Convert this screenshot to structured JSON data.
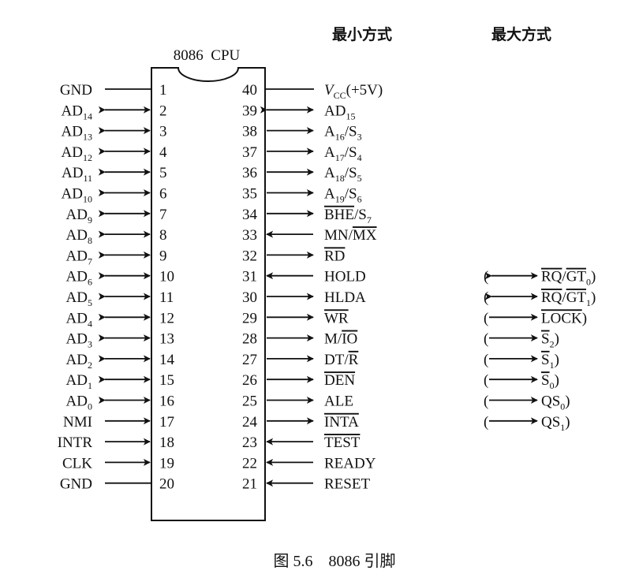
{
  "headers": {
    "chip": "8086  CPU",
    "min_mode": "最小方式",
    "max_mode": "最大方式"
  },
  "caption": "图 5.6    8086 引脚",
  "left_pins": [
    {
      "num": "1",
      "label": [
        {
          "t": "GND"
        }
      ],
      "arrow": "line"
    },
    {
      "num": "2",
      "label": [
        {
          "t": "AD"
        },
        {
          "t": "14",
          "sub": true
        }
      ],
      "arrow": "bi"
    },
    {
      "num": "3",
      "label": [
        {
          "t": "AD"
        },
        {
          "t": "13",
          "sub": true
        }
      ],
      "arrow": "bi"
    },
    {
      "num": "4",
      "label": [
        {
          "t": "AD"
        },
        {
          "t": "12",
          "sub": true
        }
      ],
      "arrow": "bi"
    },
    {
      "num": "5",
      "label": [
        {
          "t": "AD"
        },
        {
          "t": "11",
          "sub": true
        }
      ],
      "arrow": "bi"
    },
    {
      "num": "6",
      "label": [
        {
          "t": "AD"
        },
        {
          "t": "10",
          "sub": true
        }
      ],
      "arrow": "bi"
    },
    {
      "num": "7",
      "label": [
        {
          "t": "AD"
        },
        {
          "t": "9",
          "sub": true
        }
      ],
      "arrow": "bi"
    },
    {
      "num": "8",
      "label": [
        {
          "t": "AD"
        },
        {
          "t": "8",
          "sub": true
        }
      ],
      "arrow": "bi"
    },
    {
      "num": "9",
      "label": [
        {
          "t": "AD"
        },
        {
          "t": "7",
          "sub": true
        }
      ],
      "arrow": "bi"
    },
    {
      "num": "10",
      "label": [
        {
          "t": "AD"
        },
        {
          "t": "6",
          "sub": true
        }
      ],
      "arrow": "bi"
    },
    {
      "num": "11",
      "label": [
        {
          "t": "AD"
        },
        {
          "t": "5",
          "sub": true
        }
      ],
      "arrow": "bi"
    },
    {
      "num": "12",
      "label": [
        {
          "t": "AD"
        },
        {
          "t": "4",
          "sub": true
        }
      ],
      "arrow": "bi"
    },
    {
      "num": "13",
      "label": [
        {
          "t": "AD"
        },
        {
          "t": "3",
          "sub": true
        }
      ],
      "arrow": "bi"
    },
    {
      "num": "14",
      "label": [
        {
          "t": "AD"
        },
        {
          "t": "2",
          "sub": true
        }
      ],
      "arrow": "bi"
    },
    {
      "num": "15",
      "label": [
        {
          "t": "AD"
        },
        {
          "t": "1",
          "sub": true
        }
      ],
      "arrow": "bi"
    },
    {
      "num": "16",
      "label": [
        {
          "t": "AD"
        },
        {
          "t": "0",
          "sub": true
        }
      ],
      "arrow": "bi"
    },
    {
      "num": "17",
      "label": [
        {
          "t": "NMI"
        }
      ],
      "arrow": "in"
    },
    {
      "num": "18",
      "label": [
        {
          "t": "INTR"
        }
      ],
      "arrow": "in"
    },
    {
      "num": "19",
      "label": [
        {
          "t": "CLK"
        }
      ],
      "arrow": "in"
    },
    {
      "num": "20",
      "label": [
        {
          "t": "GND"
        }
      ],
      "arrow": "line"
    }
  ],
  "right_pins": [
    {
      "num": "40",
      "label": [
        {
          "t": "V",
          "it": true
        },
        {
          "t": "CC",
          "sub": true
        },
        {
          "t": "(+5V)"
        }
      ],
      "arrow": "line"
    },
    {
      "num": "39",
      "label": [
        {
          "t": "AD"
        },
        {
          "t": "15",
          "sub": true
        }
      ],
      "arrow": "bi"
    },
    {
      "num": "38",
      "label": [
        {
          "t": "A"
        },
        {
          "t": "16",
          "sub": true
        },
        {
          "t": "/S"
        },
        {
          "t": "3",
          "sub": true
        }
      ],
      "arrow": "out"
    },
    {
      "num": "37",
      "label": [
        {
          "t": "A"
        },
        {
          "t": "17",
          "sub": true
        },
        {
          "t": "/S"
        },
        {
          "t": "4",
          "sub": true
        }
      ],
      "arrow": "out"
    },
    {
      "num": "36",
      "label": [
        {
          "t": "A"
        },
        {
          "t": "18",
          "sub": true
        },
        {
          "t": "/S"
        },
        {
          "t": "5",
          "sub": true
        }
      ],
      "arrow": "out"
    },
    {
      "num": "35",
      "label": [
        {
          "t": "A"
        },
        {
          "t": "19",
          "sub": true
        },
        {
          "t": "/S"
        },
        {
          "t": "6",
          "sub": true
        }
      ],
      "arrow": "out"
    },
    {
      "num": "34",
      "label": [
        {
          "t": "BHE",
          "ov": true
        },
        {
          "t": "/S"
        },
        {
          "t": "7",
          "sub": true
        }
      ],
      "arrow": "out"
    },
    {
      "num": "33",
      "label": [
        {
          "t": "MN/"
        },
        {
          "t": "MX",
          "ov": true
        }
      ],
      "arrow": "in"
    },
    {
      "num": "32",
      "label": [
        {
          "t": "RD",
          "ov": true
        }
      ],
      "arrow": "out"
    },
    {
      "num": "31",
      "label": [
        {
          "t": "HOLD"
        }
      ],
      "arrow": "in"
    },
    {
      "num": "30",
      "label": [
        {
          "t": "HLDA"
        }
      ],
      "arrow": "out"
    },
    {
      "num": "29",
      "label": [
        {
          "t": "WR",
          "ov": true
        }
      ],
      "arrow": "out"
    },
    {
      "num": "28",
      "label": [
        {
          "t": "M/"
        },
        {
          "t": "IO",
          "ov": true
        }
      ],
      "arrow": "out"
    },
    {
      "num": "27",
      "label": [
        {
          "t": "DT/"
        },
        {
          "t": "R",
          "ov": true
        }
      ],
      "arrow": "out"
    },
    {
      "num": "26",
      "label": [
        {
          "t": "DEN",
          "ov": true
        }
      ],
      "arrow": "out"
    },
    {
      "num": "25",
      "label": [
        {
          "t": "ALE"
        }
      ],
      "arrow": "out"
    },
    {
      "num": "24",
      "label": [
        {
          "t": "INTA",
          "ov": true
        }
      ],
      "arrow": "out"
    },
    {
      "num": "23",
      "label": [
        {
          "t": "TEST",
          "ov": true
        }
      ],
      "arrow": "in"
    },
    {
      "num": "22",
      "label": [
        {
          "t": "READY"
        }
      ],
      "arrow": "in"
    },
    {
      "num": "21",
      "label": [
        {
          "t": "RESET"
        }
      ],
      "arrow": "in"
    }
  ],
  "max_pins": [
    {
      "pin": "31",
      "arrow": "bi",
      "label": [
        {
          "t": "RQ",
          "ov": true
        },
        {
          "t": "/"
        },
        {
          "t": "GT",
          "ov": true
        },
        {
          "t": "0",
          "sub": true
        }
      ]
    },
    {
      "pin": "30",
      "arrow": "bi",
      "label": [
        {
          "t": "RQ",
          "ov": true
        },
        {
          "t": "/"
        },
        {
          "t": "GT",
          "ov": true
        },
        {
          "t": "1",
          "sub": true
        }
      ]
    },
    {
      "pin": "29",
      "arrow": "out",
      "label": [
        {
          "t": "LOCK",
          "ov": true
        }
      ]
    },
    {
      "pin": "28",
      "arrow": "out",
      "label": [
        {
          "t": "S",
          "ov": true
        },
        {
          "t": "2",
          "sub": true
        }
      ]
    },
    {
      "pin": "27",
      "arrow": "out",
      "label": [
        {
          "t": "S",
          "ov": true
        },
        {
          "t": "1",
          "sub": true
        }
      ]
    },
    {
      "pin": "26",
      "arrow": "out",
      "label": [
        {
          "t": "S",
          "ov": true
        },
        {
          "t": "0",
          "sub": true
        }
      ]
    },
    {
      "pin": "25",
      "arrow": "out",
      "label": [
        {
          "t": "QS"
        },
        {
          "t": "0",
          "sub": true
        }
      ]
    },
    {
      "pin": "24",
      "arrow": "out",
      "label": [
        {
          "t": "QS"
        },
        {
          "t": "1",
          "sub": true
        }
      ]
    }
  ]
}
